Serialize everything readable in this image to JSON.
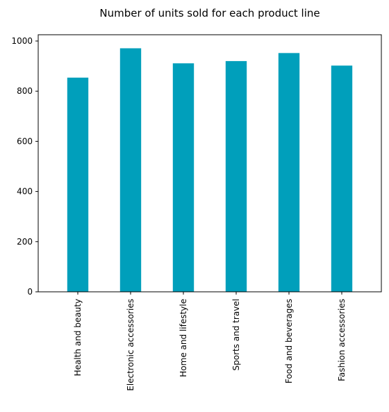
{
  "chart_data": {
    "type": "bar",
    "title": "Number of units sold for each product line",
    "categories": [
      "Health and beauty",
      "Electronic accessories",
      "Home and lifestyle",
      "Sports and travel",
      "Food and beverages",
      "Fashion accessories"
    ],
    "values": [
      854,
      971,
      911,
      920,
      952,
      902
    ],
    "xlabel": "",
    "ylabel": "",
    "ylim": [
      0,
      1025
    ],
    "yticks": [
      0,
      200,
      400,
      600,
      800,
      1000
    ],
    "grid": false,
    "legend": "none",
    "bar_color": "#009fbb"
  }
}
